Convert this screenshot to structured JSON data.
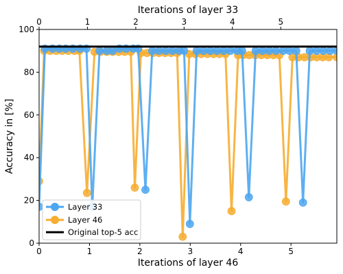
{
  "chart_data": {
    "type": "line",
    "title": "",
    "x_top_label": "Iterations of layer 33",
    "x_bottom_label": "Iterations of layer 46",
    "ylabel": "Accuracy in [%]",
    "ylim": [
      0,
      100
    ],
    "y_ticks": [
      0,
      20,
      40,
      60,
      80,
      100
    ],
    "bottom_xlim": [
      0,
      5.91
    ],
    "bottom_ticks": [
      0,
      1,
      2,
      3,
      4,
      5
    ],
    "top_xlim": [
      0,
      6.16
    ],
    "top_ticks": [
      0,
      1,
      2,
      3,
      4,
      5
    ],
    "grid": false,
    "legend_position": "lower-left",
    "reference_line": {
      "name": "Original top-5 acc",
      "value": 92,
      "color": "#000000"
    },
    "series": [
      {
        "name": "Layer 33",
        "color": "#4da6f0",
        "axis": "top",
        "x": [
          0.0,
          0.12,
          0.28,
          0.42,
          0.55,
          0.7,
          0.85,
          0.98,
          1.1,
          1.25,
          1.4,
          1.52,
          1.66,
          1.8,
          1.95,
          2.05,
          2.2,
          2.34,
          2.48,
          2.62,
          2.76,
          2.9,
          3.0,
          3.12,
          3.26,
          3.4,
          3.54,
          3.68,
          3.82,
          3.96,
          4.1,
          4.2,
          4.34,
          4.48,
          4.62,
          4.76,
          4.9,
          5.05,
          5.18,
          5.32,
          5.46,
          5.6,
          5.74,
          5.88,
          6.02,
          6.16
        ],
        "y": [
          17,
          91,
          91,
          91,
          91,
          91,
          91,
          91,
          17,
          90,
          90,
          90,
          91,
          91,
          91,
          91,
          25,
          90,
          90,
          90,
          90,
          90,
          90,
          9,
          90,
          90,
          90,
          90,
          90,
          90,
          90,
          90,
          21.5,
          90,
          90,
          90,
          90,
          90,
          90,
          90,
          19,
          90,
          90,
          90,
          90,
          90
        ]
      },
      {
        "name": "Layer 46",
        "color": "#f6ad30",
        "axis": "bottom",
        "x": [
          0.0,
          0.1,
          0.22,
          0.34,
          0.46,
          0.58,
          0.7,
          0.8,
          0.95,
          1.1,
          1.22,
          1.34,
          1.46,
          1.58,
          1.7,
          1.82,
          1.9,
          2.02,
          2.14,
          2.26,
          2.38,
          2.5,
          2.62,
          2.74,
          2.85,
          2.98,
          3.1,
          3.22,
          3.34,
          3.46,
          3.58,
          3.7,
          3.82,
          3.95,
          4.05,
          4.17,
          4.29,
          4.41,
          4.53,
          4.65,
          4.77,
          4.9,
          5.03,
          5.15,
          5.27,
          5.39,
          5.51,
          5.63,
          5.75,
          5.91
        ],
        "y": [
          29,
          90,
          90,
          90,
          90,
          90,
          90,
          90,
          23.5,
          89.5,
          89.5,
          89.5,
          89.5,
          89.5,
          89.5,
          89.5,
          26,
          89,
          89,
          89,
          89,
          89,
          89,
          89,
          3,
          88.5,
          88.5,
          88.5,
          88.5,
          88.5,
          88.5,
          88.5,
          15,
          88,
          88,
          88,
          88,
          88,
          88,
          88,
          88,
          19.5,
          87,
          87,
          87,
          87,
          87,
          87,
          87,
          87
        ]
      }
    ]
  }
}
